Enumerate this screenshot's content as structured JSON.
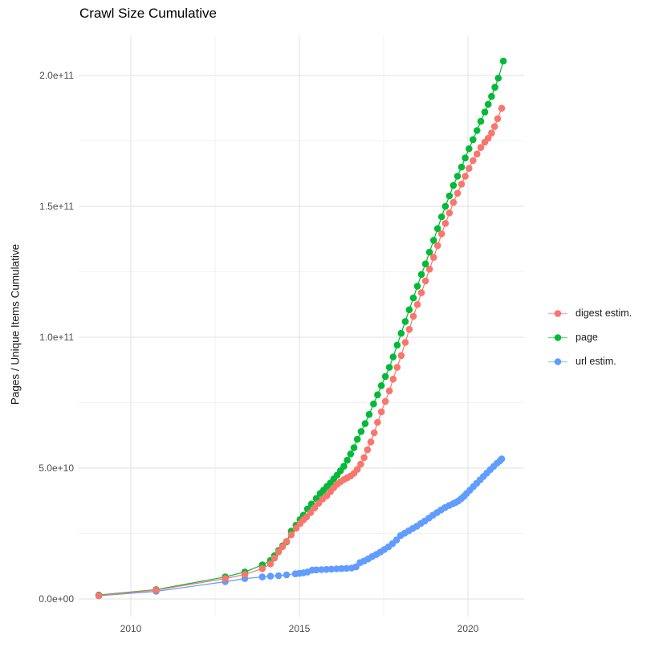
{
  "chart": {
    "title": "Crawl Size Cumulative",
    "y_axis": {
      "title": "Pages / Unique Items Cumulative",
      "ticks": [
        {
          "label": "0.0e+00",
          "value_e9": 0
        },
        {
          "label": "5.0e+10",
          "value_e9": 50
        },
        {
          "label": "1.0e+11",
          "value_e9": 100
        },
        {
          "label": "1.5e+11",
          "value_e9": 150
        },
        {
          "label": "2.0e+11",
          "value_e9": 200
        }
      ],
      "minor_values_e9": [
        25,
        75,
        125,
        175
      ]
    },
    "x_axis": {
      "ticks": [
        {
          "label": "2010",
          "value": 2010
        },
        {
          "label": "2015",
          "value": 2015
        },
        {
          "label": "2020",
          "value": 2020
        }
      ],
      "minor_values": [
        2012.5,
        2017.5
      ]
    },
    "colors": {
      "digest": "#F8766D",
      "page": "#00BA38",
      "url": "#619CFF",
      "grid_major": "#e5e5e5",
      "grid_minor": "#efefef",
      "tick_text": "#4d4d4d"
    }
  },
  "chart_data": {
    "type": "line",
    "title": "Crawl Size Cumulative",
    "xlabel": "",
    "ylabel": "Pages / Unique Items Cumulative",
    "x_unit": "year",
    "y_unit": "count (value_e9 = billions of pages / unique items)",
    "xlim": [
      2008.45,
      2021.65
    ],
    "ylim_e9": [
      -10,
      216
    ],
    "grid": true,
    "legend_position": "right",
    "marker": "point",
    "series": [
      {
        "name": "digest estim.",
        "color": "#F8766D",
        "points": [
          [
            2009.05,
            1.3
          ],
          [
            2010.75,
            3.4
          ],
          [
            2012.8,
            7.8
          ],
          [
            2013.38,
            9.4
          ],
          [
            2013.9,
            11.6
          ],
          [
            2014.14,
            13.4
          ],
          [
            2014.26,
            15.6
          ],
          [
            2014.38,
            18.0
          ],
          [
            2014.5,
            20.0
          ],
          [
            2014.62,
            22.0
          ],
          [
            2014.76,
            24.5
          ],
          [
            2014.9,
            27.0
          ],
          [
            2015.02,
            28.8
          ],
          [
            2015.12,
            30.2
          ],
          [
            2015.21,
            31.3
          ],
          [
            2015.33,
            33.0
          ],
          [
            2015.45,
            34.8
          ],
          [
            2015.57,
            36.5
          ],
          [
            2015.69,
            38.2
          ],
          [
            2015.81,
            39.4
          ],
          [
            2015.92,
            41.0
          ],
          [
            2016.02,
            42.5
          ],
          [
            2016.12,
            43.8
          ],
          [
            2016.22,
            44.8
          ],
          [
            2016.32,
            45.6
          ],
          [
            2016.42,
            46.3
          ],
          [
            2016.52,
            47.0
          ],
          [
            2016.62,
            48.0
          ],
          [
            2016.72,
            49.5
          ],
          [
            2016.82,
            51.5
          ],
          [
            2016.92,
            54.0
          ],
          [
            2017.02,
            57.0
          ],
          [
            2017.12,
            60.0
          ],
          [
            2017.22,
            63.5
          ],
          [
            2017.32,
            67.5
          ],
          [
            2017.43,
            71.5
          ],
          [
            2017.55,
            75.5
          ],
          [
            2017.67,
            79.5
          ],
          [
            2017.78,
            84.0
          ],
          [
            2017.9,
            88.5
          ],
          [
            2018.02,
            93.0
          ],
          [
            2018.14,
            98.0
          ],
          [
            2018.26,
            103.0
          ],
          [
            2018.38,
            108.0
          ],
          [
            2018.5,
            112.5
          ],
          [
            2018.62,
            117.0
          ],
          [
            2018.74,
            121.5
          ],
          [
            2018.86,
            126.0
          ],
          [
            2018.98,
            130.5
          ],
          [
            2019.1,
            135.0
          ],
          [
            2019.22,
            139.5
          ],
          [
            2019.33,
            143.5
          ],
          [
            2019.45,
            147.5
          ],
          [
            2019.57,
            151.5
          ],
          [
            2019.69,
            155.0
          ],
          [
            2019.81,
            158.5
          ],
          [
            2019.92,
            161.5
          ],
          [
            2020.03,
            164.5
          ],
          [
            2020.15,
            167.5
          ],
          [
            2020.27,
            170.0
          ],
          [
            2020.38,
            172.5
          ],
          [
            2020.5,
            174.5
          ],
          [
            2020.6,
            176.0
          ],
          [
            2020.7,
            178.0
          ],
          [
            2020.79,
            180.5
          ],
          [
            2020.88,
            183.5
          ],
          [
            2021.0,
            187.5
          ]
        ]
      },
      {
        "name": "page",
        "color": "#00BA38",
        "points": [
          [
            2009.05,
            1.5
          ],
          [
            2010.75,
            3.6
          ],
          [
            2012.8,
            8.4
          ],
          [
            2013.38,
            10.3
          ],
          [
            2013.9,
            13.0
          ],
          [
            2014.14,
            14.7
          ],
          [
            2014.26,
            16.5
          ],
          [
            2014.38,
            18.5
          ],
          [
            2014.5,
            20.3
          ],
          [
            2014.62,
            21.8
          ],
          [
            2014.76,
            25.9
          ],
          [
            2014.9,
            28.2
          ],
          [
            2015.02,
            30.3
          ],
          [
            2015.12,
            32.0
          ],
          [
            2015.24,
            34.4
          ],
          [
            2015.36,
            36.3
          ],
          [
            2015.5,
            38.4
          ],
          [
            2015.62,
            40.3
          ],
          [
            2015.72,
            41.6
          ],
          [
            2015.82,
            43.0
          ],
          [
            2015.92,
            44.3
          ],
          [
            2016.02,
            45.9
          ],
          [
            2016.12,
            47.3
          ],
          [
            2016.22,
            49.0
          ],
          [
            2016.32,
            50.7
          ],
          [
            2016.42,
            53.0
          ],
          [
            2016.52,
            55.4
          ],
          [
            2016.62,
            57.8
          ],
          [
            2016.72,
            61.0
          ],
          [
            2016.83,
            64.0
          ],
          [
            2016.95,
            67.0
          ],
          [
            2017.07,
            70.5
          ],
          [
            2017.2,
            74.5
          ],
          [
            2017.32,
            78.0
          ],
          [
            2017.43,
            81.5
          ],
          [
            2017.55,
            85.0
          ],
          [
            2017.67,
            88.5
          ],
          [
            2017.78,
            92.5
          ],
          [
            2017.9,
            97.0
          ],
          [
            2018.02,
            101.5
          ],
          [
            2018.14,
            106.0
          ],
          [
            2018.26,
            110.5
          ],
          [
            2018.38,
            115.0
          ],
          [
            2018.5,
            119.5
          ],
          [
            2018.62,
            124.0
          ],
          [
            2018.74,
            128.0
          ],
          [
            2018.86,
            132.5
          ],
          [
            2018.98,
            137.0
          ],
          [
            2019.1,
            141.5
          ],
          [
            2019.22,
            146.0
          ],
          [
            2019.33,
            150.0
          ],
          [
            2019.45,
            154.0
          ],
          [
            2019.57,
            158.0
          ],
          [
            2019.69,
            161.5
          ],
          [
            2019.81,
            165.0
          ],
          [
            2019.92,
            168.5
          ],
          [
            2020.03,
            172.0
          ],
          [
            2020.15,
            175.5
          ],
          [
            2020.27,
            179.0
          ],
          [
            2020.38,
            182.5
          ],
          [
            2020.5,
            186.0
          ],
          [
            2020.6,
            189.0
          ],
          [
            2020.7,
            192.0
          ],
          [
            2020.8,
            195.5
          ],
          [
            2020.9,
            199.0
          ],
          [
            2021.05,
            205.5
          ]
        ]
      },
      {
        "name": "url estim.",
        "color": "#619CFF",
        "points": [
          [
            2009.05,
            1.2
          ],
          [
            2010.75,
            2.9
          ],
          [
            2012.8,
            6.6
          ],
          [
            2013.38,
            7.8
          ],
          [
            2013.9,
            8.4
          ],
          [
            2014.14,
            8.7
          ],
          [
            2014.38,
            8.9
          ],
          [
            2014.62,
            9.2
          ],
          [
            2014.88,
            9.6
          ],
          [
            2015.0,
            9.8
          ],
          [
            2015.12,
            10.0
          ],
          [
            2015.24,
            10.3
          ],
          [
            2015.38,
            11.0
          ],
          [
            2015.5,
            11.1
          ],
          [
            2015.65,
            11.2
          ],
          [
            2015.8,
            11.3
          ],
          [
            2015.95,
            11.4
          ],
          [
            2016.1,
            11.5
          ],
          [
            2016.25,
            11.6
          ],
          [
            2016.4,
            11.7
          ],
          [
            2016.55,
            11.8
          ],
          [
            2016.68,
            12.3
          ],
          [
            2016.8,
            13.9
          ],
          [
            2016.92,
            14.5
          ],
          [
            2017.04,
            15.3
          ],
          [
            2017.16,
            16.2
          ],
          [
            2017.28,
            17.0
          ],
          [
            2017.4,
            17.9
          ],
          [
            2017.52,
            18.9
          ],
          [
            2017.64,
            19.9
          ],
          [
            2017.76,
            21.1
          ],
          [
            2017.88,
            22.5
          ],
          [
            2018.0,
            24.2
          ],
          [
            2018.12,
            25.1
          ],
          [
            2018.24,
            26.0
          ],
          [
            2018.36,
            26.9
          ],
          [
            2018.48,
            27.8
          ],
          [
            2018.6,
            28.8
          ],
          [
            2018.72,
            29.8
          ],
          [
            2018.84,
            30.9
          ],
          [
            2018.96,
            32.0
          ],
          [
            2019.08,
            33.0
          ],
          [
            2019.2,
            34.0
          ],
          [
            2019.32,
            34.9
          ],
          [
            2019.44,
            35.7
          ],
          [
            2019.56,
            36.4
          ],
          [
            2019.64,
            36.9
          ],
          [
            2019.72,
            37.5
          ],
          [
            2019.8,
            38.3
          ],
          [
            2019.88,
            39.2
          ],
          [
            2019.96,
            40.3
          ],
          [
            2020.06,
            41.6
          ],
          [
            2020.16,
            42.9
          ],
          [
            2020.26,
            44.2
          ],
          [
            2020.36,
            45.5
          ],
          [
            2020.46,
            46.8
          ],
          [
            2020.56,
            48.1
          ],
          [
            2020.66,
            49.4
          ],
          [
            2020.76,
            50.6
          ],
          [
            2020.86,
            51.8
          ],
          [
            2020.95,
            52.8
          ],
          [
            2021.0,
            53.5
          ]
        ]
      }
    ],
    "legend_entries": [
      "digest estim.",
      "page",
      "url estim."
    ],
    "draw_order": [
      "url estim.",
      "page",
      "digest estim."
    ]
  }
}
